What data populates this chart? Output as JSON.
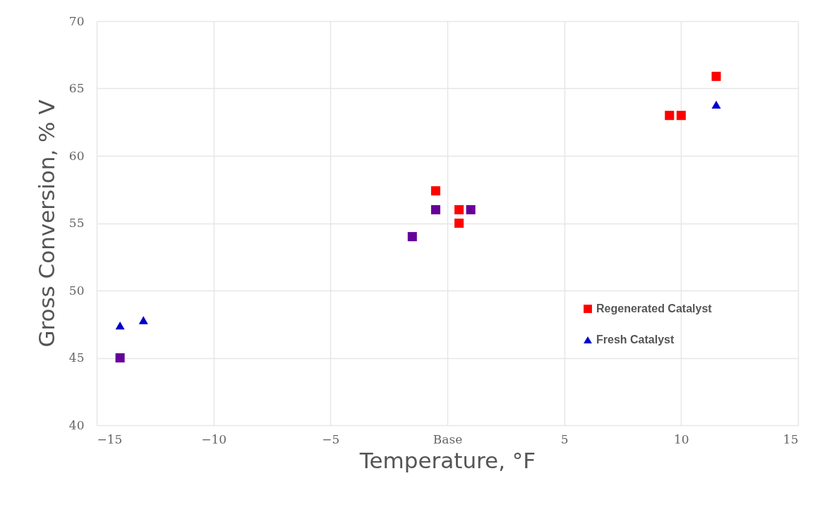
{
  "chart_data": {
    "type": "scatter",
    "xlabel": "Temperature, °F",
    "ylabel": "Gross Conversion, % V",
    "xlim": [
      -15,
      15
    ],
    "xticks": [
      -15,
      -10,
      -5,
      {
        "value": 0,
        "label": "Base"
      },
      5,
      10,
      15
    ],
    "ylim": [
      40,
      70
    ],
    "yticks": [
      40,
      45,
      50,
      55,
      60,
      65,
      70
    ],
    "grid": true,
    "legend": "bottom right",
    "series": [
      {
        "name": "Regenerated Catalyst",
        "color": "#ff0000",
        "marker": "square",
        "x": [
          -0.5,
          0.5,
          0.5,
          9.5,
          10,
          11.5
        ],
        "values": [
          57.4,
          56,
          55,
          63,
          63,
          65.9
        ]
      },
      {
        "name": "Fresh Catalyst",
        "color": "#0000cc",
        "marker": "triangle",
        "x": [
          -14,
          -13,
          11.5
        ],
        "values": [
          47.4,
          47.8,
          63.8
        ]
      },
      {
        "color": "#660099",
        "marker": "square",
        "x": [
          -14,
          -1.5,
          -0.5,
          1
        ],
        "values": [
          45,
          54,
          56,
          56
        ]
      }
    ]
  }
}
